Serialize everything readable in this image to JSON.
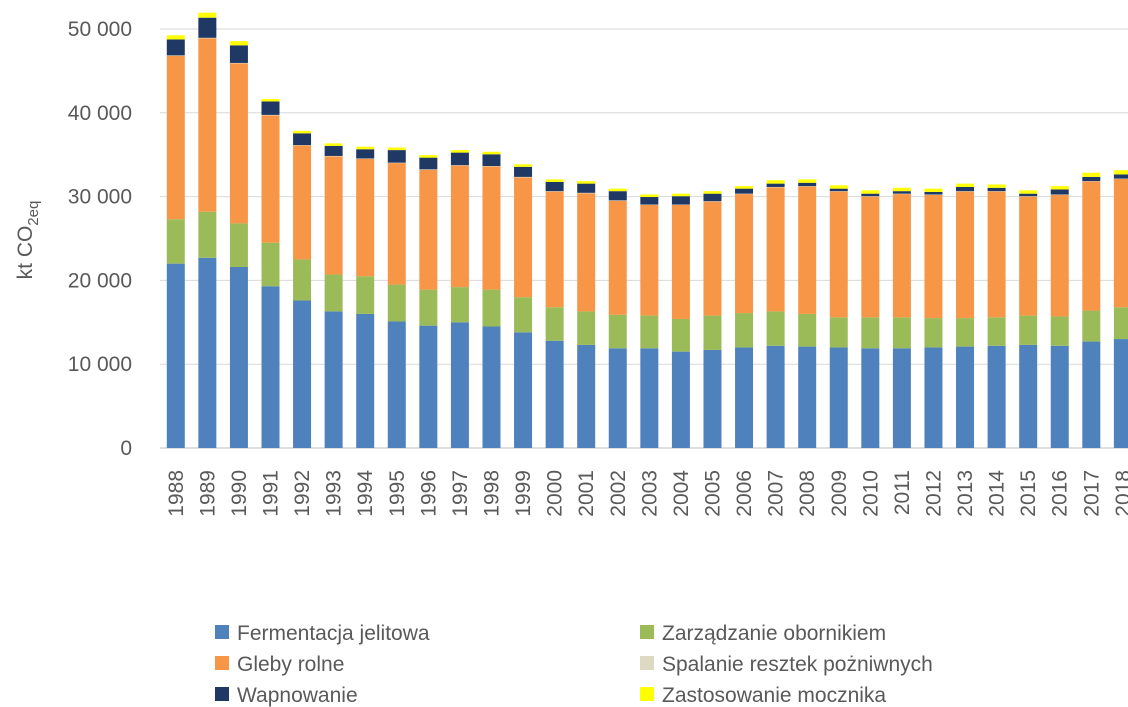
{
  "chart_data": {
    "type": "stacked_bar",
    "y_label": "kt CO",
    "y_label_sub": "2eq",
    "categories": [
      "1988",
      "1989",
      "1990",
      "1991",
      "1992",
      "1993",
      "1994",
      "1995",
      "1996",
      "1997",
      "1998",
      "1999",
      "2000",
      "2001",
      "2002",
      "2003",
      "2004",
      "2005",
      "2006",
      "2007",
      "2008",
      "2009",
      "2010",
      "2011",
      "2012",
      "2013",
      "2014",
      "2015",
      "2016",
      "2017",
      "2018"
    ],
    "series": [
      {
        "name": "Fermentacja jelitowa",
        "color": "#4f81bd",
        "values": [
          22000,
          22700,
          21600,
          19300,
          17600,
          16300,
          16000,
          15100,
          14600,
          15000,
          14500,
          13800,
          12800,
          12300,
          11900,
          11900,
          11500,
          11700,
          12000,
          12200,
          12100,
          12000,
          11900,
          11900,
          12000,
          12100,
          12200,
          12300,
          12200,
          12700,
          13000
        ]
      },
      {
        "name": "Zarządzanie obornikiem",
        "color": "#9bbb59",
        "values": [
          5300,
          5500,
          5200,
          5200,
          4900,
          4400,
          4500,
          4400,
          4300,
          4200,
          4400,
          4200,
          4000,
          4000,
          4000,
          3900,
          3900,
          4100,
          4100,
          4100,
          3900,
          3600,
          3700,
          3700,
          3500,
          3400,
          3400,
          3500,
          3500,
          3700,
          3800
        ]
      },
      {
        "name": "Gleby rolne",
        "color": "#f79646",
        "values": [
          19500,
          20700,
          19100,
          15200,
          13600,
          14100,
          14000,
          14500,
          14300,
          14500,
          14700,
          14300,
          13800,
          14100,
          13600,
          13200,
          13600,
          13600,
          14200,
          14800,
          15200,
          15000,
          14400,
          14700,
          14700,
          15100,
          15000,
          14200,
          14500,
          15400,
          15300
        ]
      },
      {
        "name": "Spalanie resztek pożniwnych",
        "color": "#ddd9c3",
        "values": [
          50,
          50,
          50,
          50,
          50,
          50,
          50,
          50,
          50,
          50,
          50,
          50,
          50,
          50,
          50,
          50,
          50,
          50,
          50,
          50,
          50,
          50,
          50,
          50,
          50,
          50,
          50,
          50,
          50,
          50,
          50
        ]
      },
      {
        "name": "Wapnowanie",
        "color": "#1f3864",
        "values": [
          1900,
          2400,
          2100,
          1600,
          1400,
          1200,
          1100,
          1500,
          1400,
          1500,
          1400,
          1200,
          1100,
          1100,
          1100,
          900,
          1000,
          900,
          600,
          400,
          400,
          300,
          300,
          300,
          300,
          500,
          400,
          300,
          600,
          500,
          500
        ]
      },
      {
        "name": "Zastosowanie mocznika",
        "color": "#ffff00",
        "values": [
          500,
          600,
          500,
          300,
          300,
          300,
          300,
          300,
          300,
          300,
          300,
          300,
          300,
          300,
          300,
          300,
          300,
          300,
          300,
          400,
          400,
          400,
          400,
          400,
          400,
          400,
          400,
          400,
          400,
          500,
          500
        ]
      }
    ],
    "ylim": [
      0,
      52000
    ],
    "yticks": [
      0,
      {
        "value": 10000,
        "label": "10 000"
      },
      {
        "value": 20000,
        "label": "20 000"
      },
      {
        "value": 30000,
        "label": "30 000"
      },
      {
        "value": 40000,
        "label": "40 000"
      },
      {
        "value": 50000,
        "label": "50 000"
      }
    ],
    "grid": true
  }
}
